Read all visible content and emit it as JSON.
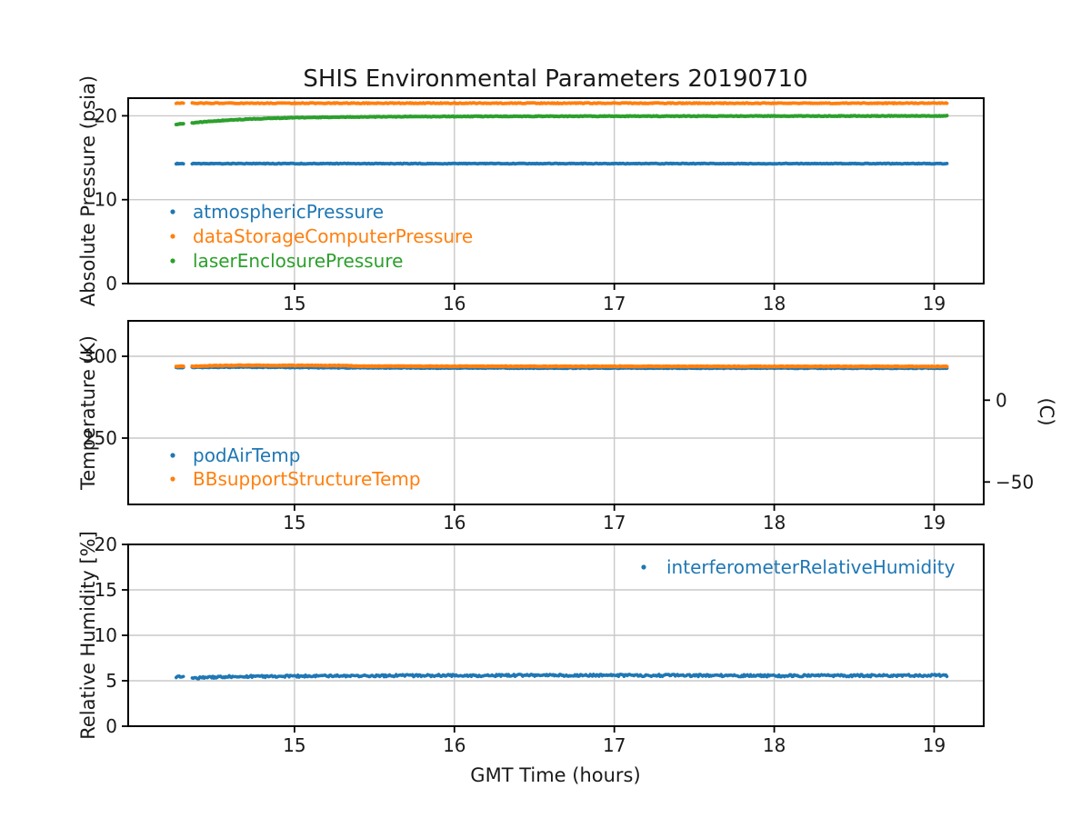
{
  "title": "SHIS Environmental Parameters 20190710",
  "xlabel": "GMT Time (hours)",
  "palette": {
    "blue": "#1f77b4",
    "orange": "#ff7f0e",
    "green": "#2ca02c",
    "grid": "#c9c9c9",
    "spine": "#000000",
    "text": "#1a1a1a"
  },
  "chart_data": [
    {
      "type": "scatter",
      "ylabel": "Absolute Pressure (psia)",
      "xlim": [
        13.96,
        19.31
      ],
      "ylim": [
        0,
        22.1
      ],
      "xticks": [
        15,
        16,
        17,
        18,
        19
      ],
      "yticks": [
        0,
        10,
        20
      ],
      "grid": true,
      "legend_position": "center-left",
      "series": [
        {
          "name": "atmosphericPressure",
          "color": "#1f77b4",
          "noise": 0.04,
          "width": 3.8,
          "segments": [
            [
              [
                14.26,
                14.3
              ],
              [
                14.305,
                14.3
              ]
            ],
            [
              [
                14.36,
                14.3
              ],
              [
                19.08,
                14.3
              ]
            ]
          ]
        },
        {
          "name": "dataStorageComputerPressure",
          "color": "#ff7f0e",
          "noise": 0.05,
          "width": 3.8,
          "segments": [
            [
              [
                14.26,
                21.5
              ],
              [
                14.305,
                21.5
              ]
            ],
            [
              [
                14.36,
                21.5
              ],
              [
                19.08,
                21.5
              ]
            ]
          ]
        },
        {
          "name": "laserEnclosurePressure",
          "color": "#2ca02c",
          "noise": 0.04,
          "width": 4,
          "segments": [
            [
              [
                14.26,
                19.0
              ],
              [
                14.305,
                19.05
              ]
            ],
            [
              [
                14.36,
                19.15
              ],
              [
                14.5,
                19.38
              ],
              [
                14.7,
                19.6
              ],
              [
                15.0,
                19.77
              ],
              [
                15.3,
                19.85
              ],
              [
                15.7,
                19.9
              ],
              [
                16.2,
                19.93
              ],
              [
                17.0,
                19.95
              ],
              [
                18.0,
                19.97
              ],
              [
                19.08,
                19.98
              ]
            ]
          ]
        }
      ]
    },
    {
      "type": "scatter",
      "ylabel": "Temperature (K)",
      "right_ylabel": "(C)",
      "xlim": [
        13.96,
        19.31
      ],
      "ylim": [
        209.4,
        321.7
      ],
      "xticks": [
        15,
        16,
        17,
        18,
        19
      ],
      "yticks": [
        250,
        300
      ],
      "right_yticks": [
        {
          "label": "0",
          "celsius": 0
        },
        {
          "label": "−50",
          "celsius": -50
        }
      ],
      "grid": true,
      "legend_position": "center-left",
      "series": [
        {
          "name": "podAirTemp",
          "color": "#1f77b4",
          "noise": 0.22,
          "width": 3.8,
          "segments": [
            [
              [
                14.26,
                293.1
              ],
              [
                14.305,
                293.1
              ]
            ],
            [
              [
                14.36,
                293.2
              ],
              [
                14.55,
                293.4
              ],
              [
                14.8,
                293.35
              ],
              [
                15.1,
                293.1
              ],
              [
                15.45,
                292.95
              ],
              [
                16.0,
                292.85
              ],
              [
                17.0,
                292.8
              ],
              [
                19.08,
                292.75
              ]
            ]
          ]
        },
        {
          "name": "BBsupportStructureTemp",
          "color": "#ff7f0e",
          "noise": 0.18,
          "width": 4,
          "segments": [
            [
              [
                14.26,
                293.9
              ],
              [
                14.305,
                293.9
              ]
            ],
            [
              [
                14.36,
                293.85
              ],
              [
                14.5,
                294.25
              ],
              [
                14.65,
                294.45
              ],
              [
                15.0,
                294.4
              ],
              [
                15.3,
                294.35
              ],
              [
                15.42,
                293.95
              ],
              [
                16.0,
                293.9
              ],
              [
                17.0,
                293.85
              ],
              [
                19.08,
                293.8
              ]
            ]
          ]
        }
      ]
    },
    {
      "type": "scatter",
      "ylabel": "Relative Humidity [%]",
      "xlim": [
        13.96,
        19.31
      ],
      "ylim": [
        0,
        20
      ],
      "xticks": [
        15,
        16,
        17,
        18,
        19
      ],
      "yticks": [
        0,
        5,
        10,
        15,
        20
      ],
      "grid": true,
      "legend_position": "upper-right",
      "series": [
        {
          "name": "interferometerRelativeHumidity",
          "color": "#1f77b4",
          "noise": 0.12,
          "width": 3.6,
          "segments": [
            [
              [
                14.26,
                5.45
              ],
              [
                14.305,
                5.4
              ]
            ],
            [
              [
                14.36,
                5.3
              ],
              [
                14.55,
                5.45
              ],
              [
                14.9,
                5.5
              ],
              [
                15.4,
                5.55
              ],
              [
                16.0,
                5.58
              ],
              [
                17.0,
                5.6
              ],
              [
                18.0,
                5.55
              ],
              [
                19.08,
                5.58
              ]
            ]
          ]
        }
      ]
    }
  ]
}
